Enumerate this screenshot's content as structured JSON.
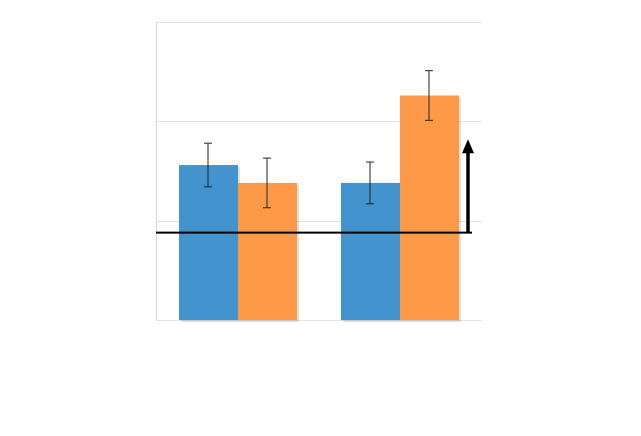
{
  "chart_data": {
    "type": "bar",
    "title": "",
    "xlabel": "",
    "ylabel": "",
    "categories": [
      "",
      ""
    ],
    "ylim": [
      0,
      3
    ],
    "gridlines": [
      0,
      1,
      2,
      3
    ],
    "grid": true,
    "legend": "none",
    "series": [
      {
        "color": "#4393cf",
        "values": [
          1.56,
          1.38
        ],
        "errors": [
          0.22,
          0.21
        ]
      },
      {
        "color": "#fe9a47",
        "values": [
          1.38,
          2.26
        ],
        "errors": [
          0.25,
          0.25
        ]
      }
    ],
    "reference_line": {
      "y": 0.88,
      "color": "#000000"
    },
    "arrow": {
      "from": 0.88,
      "to": 1.8,
      "direction": "up",
      "color": "#000000"
    }
  }
}
